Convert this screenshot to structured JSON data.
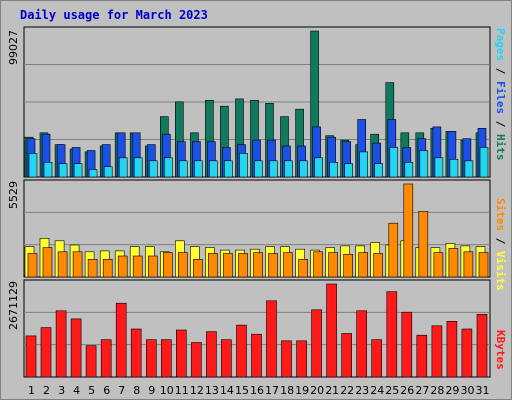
{
  "title": "Daily usage for March 2023",
  "colors": {
    "background": "#c0c0c0",
    "plot_bg": "#c0c0c0",
    "title": "#0000cc",
    "hits": "#117a5e",
    "files": "#1b4fe6",
    "pages": "#22d6f0",
    "visits": "#ffff33",
    "sites": "#ff8a00",
    "kbytes": "#ff1a1a",
    "weekend_tick": "#1f7a52",
    "weekday_tick": "#000000"
  },
  "legend": {
    "top_right": [
      {
        "text": "Pages",
        "color": "#22d6f0"
      },
      {
        "text": " / ",
        "color": "#000000"
      },
      {
        "text": "Files",
        "color": "#1b4fe6"
      },
      {
        "text": " / ",
        "color": "#000000"
      },
      {
        "text": "Hits",
        "color": "#117a5e"
      }
    ],
    "middle_right": [
      {
        "text": "Sites",
        "color": "#ff8a00"
      },
      {
        "text": " / ",
        "color": "#000000"
      },
      {
        "text": "Visits",
        "color": "#ffff33"
      }
    ],
    "bottom_right": [
      {
        "text": "KBytes",
        "color": "#ff1a1a"
      }
    ]
  },
  "chart_data": [
    {
      "type": "bar",
      "panel": "top",
      "max_label": "99027",
      "ylim": [
        0,
        99027
      ],
      "categories": [
        "1",
        "2",
        "3",
        "4",
        "5",
        "6",
        "7",
        "8",
        "9",
        "10",
        "11",
        "12",
        "13",
        "14",
        "15",
        "16",
        "17",
        "18",
        "19",
        "20",
        "21",
        "22",
        "23",
        "24",
        "25",
        "26",
        "27",
        "28",
        "29",
        "30",
        "31"
      ],
      "weekend_days": [
        "4",
        "5",
        "11",
        "12",
        "18",
        "19",
        "25",
        "26"
      ],
      "series": [
        {
          "name": "Hits",
          "values": [
            27000,
            30000,
            22000,
            19000,
            17000,
            21000,
            30000,
            30000,
            21000,
            41000,
            51000,
            30000,
            52000,
            48000,
            53000,
            52000,
            50000,
            41000,
            46000,
            99027,
            28000,
            25000,
            22000,
            29000,
            64000,
            30000,
            30000,
            33000,
            31000,
            25000,
            30000
          ]
        },
        {
          "name": "Files",
          "values": [
            26000,
            29000,
            22000,
            20000,
            18000,
            22000,
            30000,
            30000,
            22000,
            29000,
            24000,
            24000,
            24000,
            20000,
            22000,
            25000,
            25000,
            21000,
            21000,
            34000,
            27000,
            24000,
            39000,
            23000,
            39000,
            20000,
            26000,
            34000,
            31000,
            26000,
            33000
          ]
        },
        {
          "name": "Pages",
          "values": [
            16000,
            10000,
            9000,
            9000,
            5000,
            7000,
            13000,
            13000,
            11000,
            13000,
            11000,
            11000,
            11000,
            11000,
            16000,
            11000,
            11000,
            11000,
            11000,
            13000,
            10000,
            9000,
            17000,
            9000,
            20000,
            10000,
            18000,
            13000,
            12000,
            11000,
            20000
          ]
        }
      ]
    },
    {
      "type": "bar",
      "panel": "middle",
      "max_label": "5529",
      "ylim": [
        0,
        5529
      ],
      "categories": [
        "1",
        "2",
        "3",
        "4",
        "5",
        "6",
        "7",
        "8",
        "9",
        "10",
        "11",
        "12",
        "13",
        "14",
        "15",
        "16",
        "17",
        "18",
        "19",
        "20",
        "21",
        "22",
        "23",
        "24",
        "25",
        "26",
        "27",
        "28",
        "29",
        "30",
        "31"
      ],
      "series": [
        {
          "name": "Visits",
          "values": [
            1800,
            2300,
            2150,
            1900,
            1500,
            1550,
            1550,
            1800,
            1800,
            1500,
            2150,
            1800,
            1750,
            1600,
            1600,
            1650,
            1800,
            1800,
            1650,
            1600,
            1750,
            1850,
            1850,
            2050,
            1900,
            2150,
            1750,
            1750,
            2000,
            1850,
            1800
          ]
        },
        {
          "name": "Sites",
          "values": [
            1400,
            1750,
            1500,
            1500,
            1050,
            1050,
            1250,
            1250,
            1250,
            1450,
            1450,
            1050,
            1400,
            1400,
            1400,
            1450,
            1400,
            1450,
            1050,
            1500,
            1450,
            1350,
            1450,
            1400,
            3200,
            5529,
            3900,
            1450,
            1700,
            1500,
            1450
          ]
        }
      ]
    },
    {
      "type": "bar",
      "panel": "bottom",
      "max_label": "2671129",
      "ylim": [
        0,
        2671129
      ],
      "categories": [
        "1",
        "2",
        "3",
        "4",
        "5",
        "6",
        "7",
        "8",
        "9",
        "10",
        "11",
        "12",
        "13",
        "14",
        "15",
        "16",
        "17",
        "18",
        "19",
        "20",
        "21",
        "22",
        "23",
        "24",
        "25",
        "26",
        "27",
        "28",
        "29",
        "30",
        "31"
      ],
      "series": [
        {
          "name": "KBytes",
          "values": [
            1180000,
            1420000,
            1900000,
            1670000,
            900000,
            1070000,
            2120000,
            1380000,
            1070000,
            1070000,
            1350000,
            990000,
            1300000,
            1070000,
            1490000,
            1230000,
            2190000,
            1040000,
            1040000,
            1930000,
            2671129,
            1250000,
            1900000,
            1070000,
            2450000,
            1860000,
            1200000,
            1470000,
            1600000,
            1380000,
            1800000
          ]
        }
      ]
    }
  ]
}
